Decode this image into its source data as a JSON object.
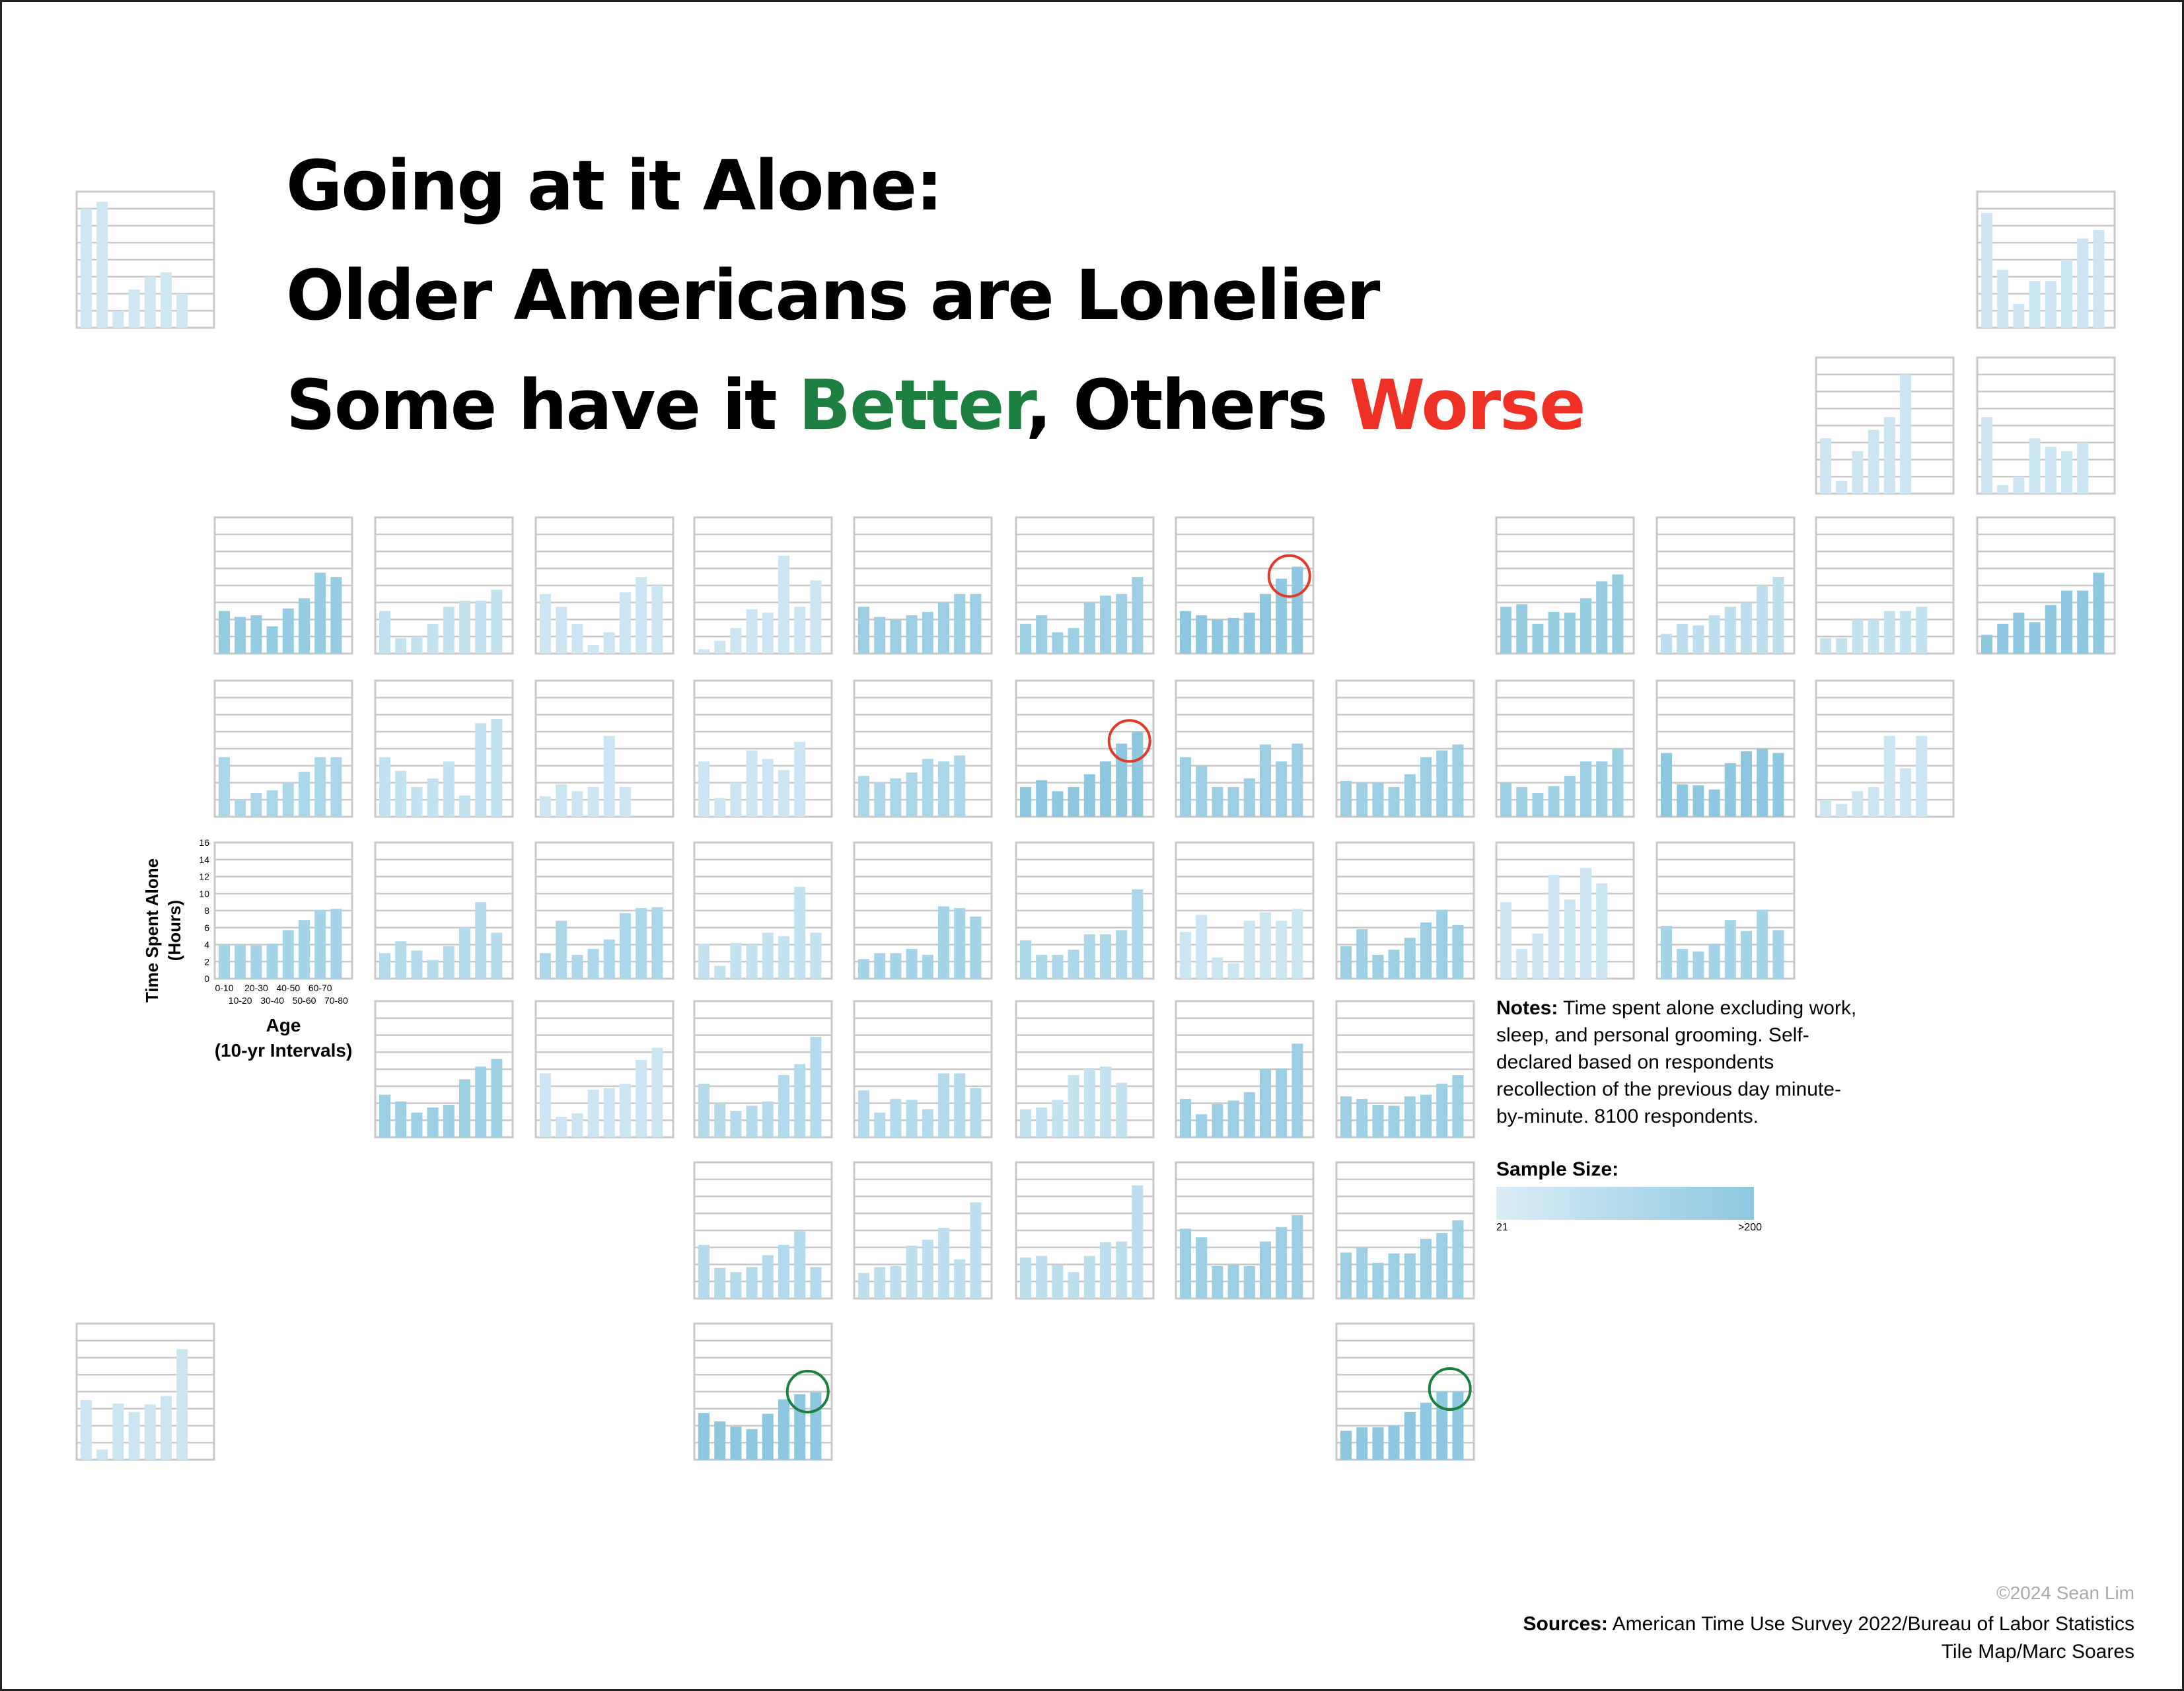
{
  "title": {
    "line1": "Going at it Alone:",
    "line2": "Older Americans are Lonelier",
    "line3_prefix": "Some have it ",
    "line3_better": "Better",
    "line3_mid": ", Others ",
    "line3_worse": "Worse"
  },
  "colors": {
    "title_text": "#000000",
    "better": "#1e8040",
    "worse": "#ee3124",
    "bar": "#8ec8e0",
    "bar_light": "#daedf6",
    "grid": "#c8c8c8",
    "circle_worse": "#e03a2a",
    "circle_better": "#1e8040",
    "credit": "#aaaaaa"
  },
  "notes": {
    "label": "Notes:",
    "text": "Time spent alone excluding work, sleep, and personal grooming. Self-declared based on respondents recollection of the previous day minute-by-minute. 8100 respondents."
  },
  "legend": {
    "title": "Sample Size:",
    "min_label": "21",
    "max_label": ">200"
  },
  "credit": "©2024 Sean Lim",
  "sources": {
    "label": "Sources:",
    "line1": "American Time Use Survey 2022/Bureau of Labor Statistics",
    "line2": "Tile Map/Marc Soares"
  },
  "chart_data": {
    "type": "bar",
    "layout": "tile map of US states (small multiples)",
    "categories": [
      "0-10",
      "10-20",
      "20-30",
      "30-40",
      "40-50",
      "50-60",
      "60-70",
      "70-80"
    ],
    "ylabel": "Time Spent Alone\n(Hours)",
    "xlabel": "Age\n(10-yr Intervals)",
    "ylim": [
      0,
      16
    ],
    "yticks": [
      0,
      2,
      4,
      6,
      8,
      10,
      12,
      14,
      16
    ],
    "grid": true,
    "legend": "sample size shown by bar color intensity (light = 21, dark = >200)",
    "tiles": [
      {
        "row": 0,
        "col": 0,
        "values": [
          14,
          14.8,
          2,
          4.5,
          6,
          6.5,
          4
        ],
        "sample": 0.15
      },
      {
        "row": 0,
        "col": 12,
        "values": [
          13.5,
          6.8,
          2.8,
          5.5,
          5.5,
          8,
          10.5,
          11.5
        ],
        "sample": 0.2
      },
      {
        "row": 1,
        "col": 11,
        "values": [
          6.5,
          1.5,
          5,
          7.5,
          9,
          14
        ],
        "sample": 0.2
      },
      {
        "row": 1,
        "col": 12,
        "values": [
          9,
          1,
          2,
          6.5,
          5.5,
          5,
          6
        ],
        "sample": 0.2
      },
      {
        "row": 2,
        "col": 1,
        "values": [
          5,
          4.3,
          4.5,
          3.2,
          5.3,
          6.5,
          9.5,
          9
        ],
        "sample": 0.9
      },
      {
        "row": 2,
        "col": 2,
        "values": [
          5,
          1.8,
          2,
          3.5,
          5.5,
          6.2,
          6.2,
          7.5
        ],
        "sample": 0.3
      },
      {
        "row": 2,
        "col": 3,
        "values": [
          7,
          5.5,
          3.5,
          1,
          2.5,
          7.2,
          9,
          8
        ],
        "sample": 0.2
      },
      {
        "row": 2,
        "col": 4,
        "values": [
          0.5,
          1.5,
          3,
          5.2,
          4.8,
          11.5,
          5.5,
          8.6
        ],
        "sample": 0.2
      },
      {
        "row": 2,
        "col": 5,
        "values": [
          5.5,
          4.3,
          4,
          4.5,
          4.9,
          6,
          7,
          7
        ],
        "sample": 0.8
      },
      {
        "row": 2,
        "col": 6,
        "values": [
          3.5,
          4.5,
          2.5,
          3,
          6,
          6.8,
          7,
          9
        ],
        "sample": 0.8
      },
      {
        "row": 2,
        "col": 7,
        "values": [
          5,
          4.5,
          4,
          4.2,
          4.8,
          7,
          8.8,
          10.2
        ],
        "sample": 1.0,
        "highlight": "worse"
      },
      {
        "row": 2,
        "col": 9,
        "values": [
          5.5,
          5.8,
          3.5,
          4.9,
          4.8,
          6.5,
          8.5,
          9.3
        ],
        "sample": 0.9
      },
      {
        "row": 2,
        "col": 10,
        "values": [
          2.3,
          3.5,
          3.3,
          4.5,
          5.5,
          6,
          8,
          9
        ],
        "sample": 0.4
      },
      {
        "row": 2,
        "col": 11,
        "values": [
          1.8,
          1.8,
          4,
          4,
          5,
          5,
          5.5
        ],
        "sample": 0.3
      },
      {
        "row": 2,
        "col": 12,
        "values": [
          2.2,
          3.5,
          4.8,
          3.7,
          5.7,
          7.4,
          7.4,
          9.5
        ],
        "sample": 1.0
      },
      {
        "row": 3,
        "col": 1,
        "values": [
          7,
          2,
          2.8,
          3.1,
          4,
          5.3,
          7,
          7
        ],
        "sample": 0.6
      },
      {
        "row": 3,
        "col": 2,
        "values": [
          7,
          5.4,
          3.5,
          4.5,
          6.5,
          2.5,
          11,
          11.5
        ],
        "sample": 0.3
      },
      {
        "row": 3,
        "col": 3,
        "values": [
          2.4,
          3.8,
          3,
          3.5,
          9.5,
          3.5
        ],
        "sample": 0.2
      },
      {
        "row": 3,
        "col": 4,
        "values": [
          6.5,
          2.2,
          4,
          7.8,
          6.8,
          5.5,
          8.8
        ],
        "sample": 0.2
      },
      {
        "row": 3,
        "col": 5,
        "values": [
          4.8,
          4,
          4.5,
          5.2,
          6.8,
          6.5,
          7.2
        ],
        "sample": 0.6
      },
      {
        "row": 3,
        "col": 6,
        "values": [
          3.5,
          4.3,
          3,
          3.5,
          5,
          6.5,
          8.6,
          10
        ],
        "sample": 1.0,
        "highlight": "worse"
      },
      {
        "row": 3,
        "col": 7,
        "values": [
          7,
          6,
          3.5,
          3.5,
          4.5,
          8.5,
          6.5,
          8.6
        ],
        "sample": 0.8
      },
      {
        "row": 3,
        "col": 8,
        "values": [
          4.2,
          4,
          4,
          3.5,
          5,
          7,
          7.8,
          8.5
        ],
        "sample": 0.8
      },
      {
        "row": 3,
        "col": 9,
        "values": [
          4,
          3.5,
          2.8,
          3.6,
          4.8,
          6.5,
          6.5,
          8
        ],
        "sample": 0.8
      },
      {
        "row": 3,
        "col": 10,
        "values": [
          7.5,
          3.8,
          3.7,
          3.2,
          6.3,
          7.7,
          8,
          7.5
        ],
        "sample": 1.0
      },
      {
        "row": 3,
        "col": 11,
        "values": [
          2,
          1.5,
          3,
          3.5,
          9.5,
          5.7,
          9.5
        ],
        "sample": 0.2
      },
      {
        "row": 4,
        "col": 1,
        "values": [
          4,
          4,
          3.9,
          4.1,
          5.7,
          6.9,
          8,
          8.2
        ],
        "sample": 0.7,
        "axes": true
      },
      {
        "row": 4,
        "col": 2,
        "values": [
          3,
          4.4,
          3.3,
          2.2,
          3.8,
          6,
          9,
          5.4
        ],
        "sample": 0.5
      },
      {
        "row": 4,
        "col": 3,
        "values": [
          3,
          6.8,
          2.8,
          3.5,
          4.6,
          7.7,
          8.3,
          8.4
        ],
        "sample": 0.6
      },
      {
        "row": 4,
        "col": 4,
        "values": [
          4.1,
          1.5,
          4.2,
          4,
          5.4,
          5,
          10.8,
          5.4
        ],
        "sample": 0.3
      },
      {
        "row": 4,
        "col": 5,
        "values": [
          2.3,
          3,
          3,
          3.5,
          2.8,
          8.5,
          8.3,
          7.3
        ],
        "sample": 0.7
      },
      {
        "row": 4,
        "col": 6,
        "values": [
          4.5,
          2.8,
          2.8,
          3.4,
          5.2,
          5.2,
          5.7,
          10.5
        ],
        "sample": 0.6
      },
      {
        "row": 4,
        "col": 7,
        "values": [
          5.5,
          7.5,
          2.5,
          1.8,
          6.8,
          7.8,
          6.8,
          8.2
        ],
        "sample": 0.2
      },
      {
        "row": 4,
        "col": 8,
        "values": [
          3.8,
          5.8,
          2.8,
          3.4,
          4.8,
          6.6,
          8.1,
          6.3
        ],
        "sample": 0.8
      },
      {
        "row": 4,
        "col": 9,
        "values": [
          9,
          3.5,
          5.3,
          12.2,
          9.3,
          13,
          11.2
        ],
        "sample": 0.2
      },
      {
        "row": 4,
        "col": 10,
        "values": [
          6.2,
          3.5,
          3.2,
          4.1,
          6.9,
          5.6,
          8.1,
          5.7
        ],
        "sample": 0.7
      },
      {
        "row": 5,
        "col": 2,
        "values": [
          5,
          4.2,
          2.9,
          3.5,
          3.8,
          6.8,
          8.3,
          9.2
        ],
        "sample": 0.8
      },
      {
        "row": 5,
        "col": 3,
        "values": [
          7.5,
          2.4,
          2.8,
          5.6,
          5.8,
          6.3,
          9.1,
          10.5
        ],
        "sample": 0.2
      },
      {
        "row": 5,
        "col": 4,
        "values": [
          6.3,
          4,
          3.1,
          3.7,
          4.2,
          7.3,
          8.6,
          11.8
        ],
        "sample": 0.5
      },
      {
        "row": 5,
        "col": 5,
        "values": [
          5.5,
          2.9,
          4.5,
          4.4,
          3.3,
          7.5,
          7.5,
          5.8
        ],
        "sample": 0.5
      },
      {
        "row": 5,
        "col": 6,
        "values": [
          3.3,
          3.5,
          4.4,
          7.3,
          8,
          8.3,
          6.4
        ],
        "sample": 0.3
      },
      {
        "row": 5,
        "col": 7,
        "values": [
          4.5,
          2.7,
          3.9,
          4.3,
          5.3,
          8,
          8.1,
          11
        ],
        "sample": 0.8
      },
      {
        "row": 5,
        "col": 8,
        "values": [
          4.8,
          4.5,
          3.8,
          3.7,
          4.8,
          5,
          6.3,
          7.3
        ],
        "sample": 0.8
      },
      {
        "row": 6,
        "col": 4,
        "values": [
          6.3,
          3.6,
          3.1,
          3.7,
          5.1,
          6.3,
          7.9,
          3.7
        ],
        "sample": 0.5
      },
      {
        "row": 6,
        "col": 5,
        "values": [
          3,
          3.7,
          3.8,
          6.2,
          6.9,
          8.3,
          4.6,
          11.3
        ],
        "sample": 0.4
      },
      {
        "row": 6,
        "col": 6,
        "values": [
          4.8,
          5,
          3.9,
          3.1,
          5,
          6.6,
          6.7,
          13.3
        ],
        "sample": 0.4
      },
      {
        "row": 6,
        "col": 7,
        "values": [
          8.2,
          7.2,
          3.8,
          4,
          3.8,
          6.7,
          8.4,
          9.8
        ],
        "sample": 0.8
      },
      {
        "row": 6,
        "col": 8,
        "values": [
          5.4,
          6,
          4.2,
          5.3,
          5.3,
          7,
          7.7,
          9.2
        ],
        "sample": 0.8
      },
      {
        "row": 7,
        "col": 0,
        "values": [
          7,
          1.2,
          6.6,
          5.6,
          6.5,
          7.5,
          13
        ],
        "sample": 0.2
      },
      {
        "row": 7,
        "col": 4,
        "values": [
          5.5,
          4.5,
          3.9,
          3.6,
          5.4,
          7.1,
          7.7,
          7.9
        ],
        "sample": 1.0,
        "highlight": "better"
      },
      {
        "row": 7,
        "col": 8,
        "values": [
          3.4,
          3.8,
          3.8,
          4,
          5.6,
          6.7,
          8,
          8
        ],
        "sample": 1.0,
        "highlight": "better"
      }
    ],
    "key_tile": {
      "ylabel": "Time Spent Alone\n(Hours)",
      "xlabel": "Age\n(10-yr Intervals)",
      "yticks": [
        0,
        2,
        4,
        6,
        8,
        10,
        12,
        14,
        16
      ],
      "xticks_upper": [
        "0-10",
        "20-30",
        "40-50",
        "60-70"
      ],
      "xticks_lower": [
        "10-20",
        "30-40",
        "50-60",
        "70-80"
      ]
    }
  }
}
